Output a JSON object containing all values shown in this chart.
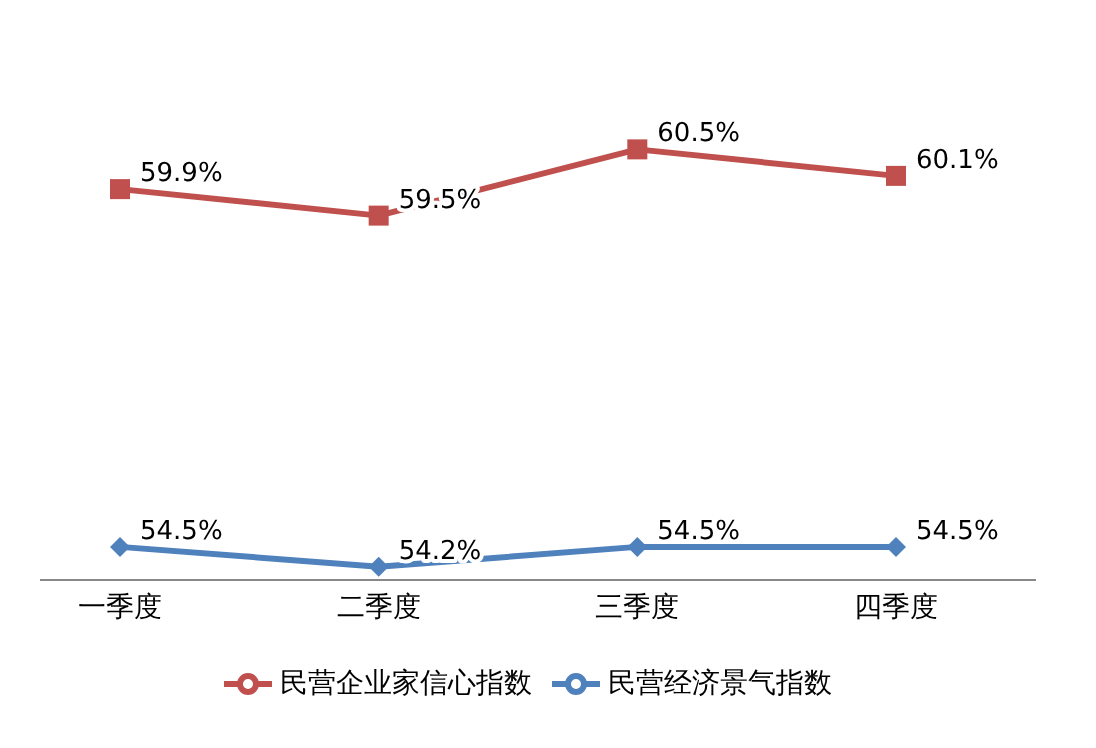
{
  "chart_data": {
    "type": "line",
    "categories": [
      "一季度",
      "二季度",
      "三季度",
      "四季度"
    ],
    "series": [
      {
        "name": "民营企业家信心指数",
        "color": "#c0504d",
        "marker": "square",
        "values": [
          59.9,
          59.5,
          60.5,
          60.1
        ],
        "value_labels": [
          "59.9%",
          "59.5%",
          "60.5%",
          "60.1%"
        ]
      },
      {
        "name": "民营经济景气指数",
        "color": "#4f81bd",
        "marker": "diamond",
        "values": [
          54.5,
          54.2,
          54.5,
          54.5
        ],
        "value_labels": [
          "54.5%",
          "54.2%",
          "54.5%",
          "54.5%"
        ]
      }
    ],
    "legend": "bottom",
    "tick_labels": "x"
  }
}
